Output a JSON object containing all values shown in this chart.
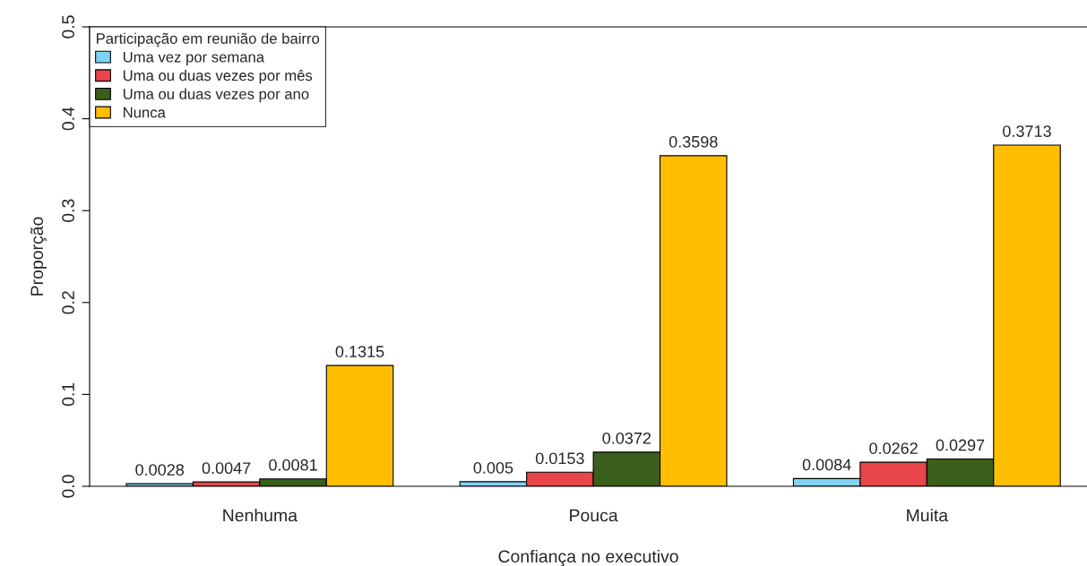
{
  "chart_data": {
    "type": "bar",
    "xlabel": "Confiança no executivo",
    "ylabel": "Proporção",
    "legend_title": "Participação em reunião de bairro",
    "categories": [
      "Nenhuma",
      "Pouca",
      "Muita"
    ],
    "series": [
      {
        "name": "Uma vez por semana",
        "color": "#7fd3f5",
        "values": [
          0.0028,
          0.005,
          0.0084
        ]
      },
      {
        "name": "Uma ou duas vezes por mês",
        "color": "#e8454a",
        "values": [
          0.0047,
          0.0153,
          0.0262
        ]
      },
      {
        "name": "Uma ou duas vezes por ano",
        "color": "#3a5e1b",
        "values": [
          0.0081,
          0.0372,
          0.0297
        ]
      },
      {
        "name": "Nunca",
        "color": "#ffbf00",
        "values": [
          0.1315,
          0.3598,
          0.3713
        ]
      }
    ],
    "ylim": [
      0,
      0.5
    ],
    "yticks": [
      {
        "value": 0,
        "label": "0.0"
      },
      0.1,
      0.2,
      0.3,
      0.4,
      0.5
    ],
    "data_labels": true,
    "legend": "top left",
    "grid": false
  }
}
